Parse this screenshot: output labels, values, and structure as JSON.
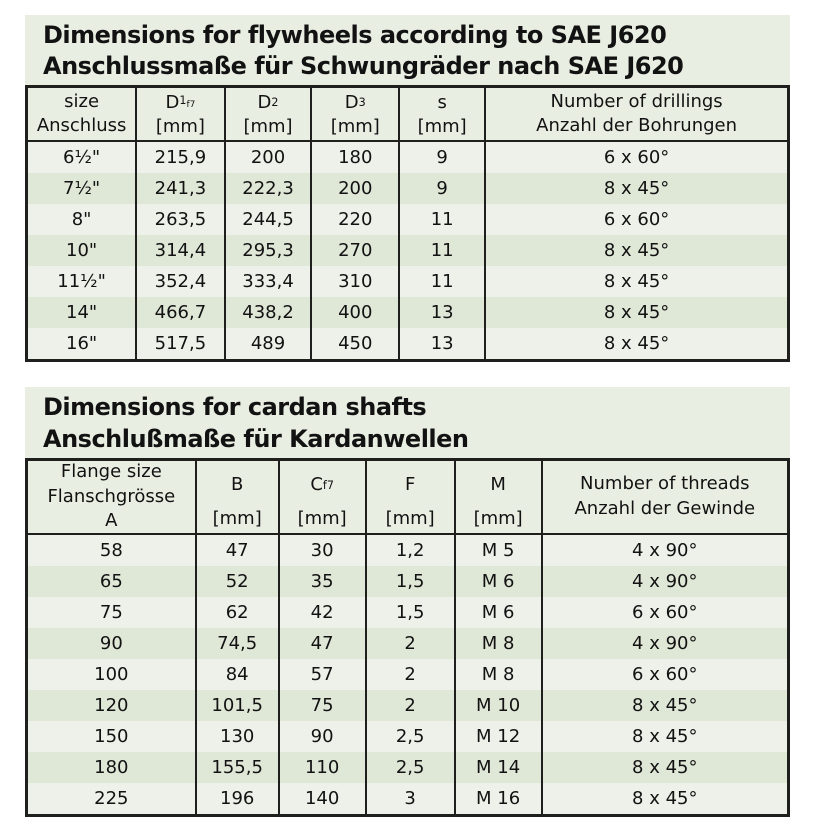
{
  "colors": {
    "page_background": "#ffffff",
    "panel_background": "#e9eee3",
    "row_light": "#eef1e9",
    "row_dark": "#dfe7d7",
    "border": "#1f1f1d",
    "text": "#121212"
  },
  "sections": [
    {
      "title_line1": "Dimensions for flywheels according to SAE J620",
      "title_line2": "Anschlussmaße für Schwungräder nach SAE J620",
      "table": {
        "columns": [
          {
            "lines": [
              "size",
              "Anschluss"
            ]
          },
          {
            "label": "D",
            "sub": "1",
            "subsub": "f7",
            "unit": "[mm]"
          },
          {
            "label": "D",
            "sub": "2",
            "unit": "[mm]"
          },
          {
            "label": "D",
            "sub": "3",
            "unit": "[mm]"
          },
          {
            "label": "s",
            "unit": "[mm]"
          },
          {
            "lines": [
              "Number of drillings",
              "Anzahl der Bohrungen"
            ]
          }
        ],
        "rows": [
          [
            "6½\"",
            "215,9",
            "200",
            "180",
            "9",
            "6 x 60°"
          ],
          [
            "7½\"",
            "241,3",
            "222,3",
            "200",
            "9",
            "8 x 45°"
          ],
          [
            "8\"",
            "263,5",
            "244,5",
            "220",
            "11",
            "6 x 60°"
          ],
          [
            "10\"",
            "314,4",
            "295,3",
            "270",
            "11",
            "8 x 45°"
          ],
          [
            "11½\"",
            "352,4",
            "333,4",
            "310",
            "11",
            "8 x 45°"
          ],
          [
            "14\"",
            "466,7",
            "438,2",
            "400",
            "13",
            "8 x 45°"
          ],
          [
            "16\"",
            "517,5",
            "489",
            "450",
            "13",
            "8 x 45°"
          ]
        ]
      }
    },
    {
      "title_line1": "Dimensions for cardan shafts",
      "title_line2": "Anschlußmaße für Kardanwellen",
      "table": {
        "columns": [
          {
            "lines": [
              "Flange size",
              "Flanschgrösse",
              "A"
            ]
          },
          {
            "label": "B",
            "unit": "[mm]"
          },
          {
            "label": "C",
            "sub": "f7",
            "unit": "[mm]"
          },
          {
            "label": "F",
            "unit": "[mm]"
          },
          {
            "label": "M",
            "unit": "[mm]"
          },
          {
            "lines": [
              "Number of threads",
              "Anzahl der Gewinde"
            ]
          }
        ],
        "rows": [
          [
            "58",
            "47",
            "30",
            "1,2",
            "M 5",
            "4 x 90°"
          ],
          [
            "65",
            "52",
            "35",
            "1,5",
            "M 6",
            "4 x 90°"
          ],
          [
            "75",
            "62",
            "42",
            "1,5",
            "M 6",
            "6 x 60°"
          ],
          [
            "90",
            "74,5",
            "47",
            "2",
            "M 8",
            "4 x 90°"
          ],
          [
            "100",
            "84",
            "57",
            "2",
            "M 8",
            "6 x 60°"
          ],
          [
            "120",
            "101,5",
            "75",
            "2",
            "M 10",
            "8 x 45°"
          ],
          [
            "150",
            "130",
            "90",
            "2,5",
            "M 12",
            "8 x 45°"
          ],
          [
            "180",
            "155,5",
            "110",
            "2,5",
            "M 14",
            "8 x 45°"
          ],
          [
            "225",
            "196",
            "140",
            "3",
            "M 16",
            "8 x 45°"
          ]
        ]
      }
    }
  ]
}
